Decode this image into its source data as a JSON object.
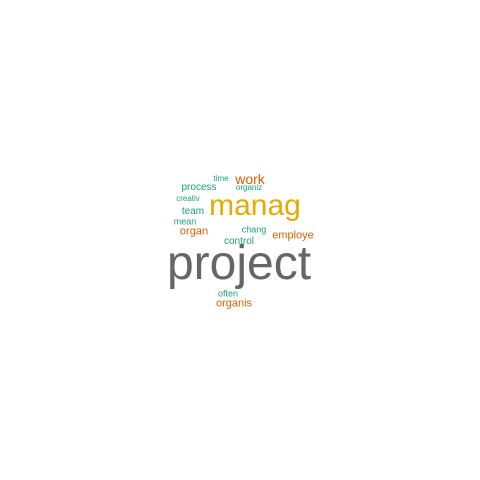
{
  "palette": {
    "gray": "#666666",
    "gold": "#e6ab02",
    "orange": "#d95f02",
    "teal": "#1b9e77"
  },
  "words": [
    {
      "id": "project",
      "text": "project",
      "color": "#666666"
    },
    {
      "id": "manag",
      "text": "manag",
      "color": "#e6ab02"
    },
    {
      "id": "work",
      "text": "work",
      "color": "#d95f02"
    },
    {
      "id": "organ",
      "text": "organ",
      "color": "#d95f02"
    },
    {
      "id": "employe",
      "text": "employe",
      "color": "#d95f02"
    },
    {
      "id": "organis",
      "text": "organis",
      "color": "#d95f02"
    },
    {
      "id": "process",
      "text": "process",
      "color": "#1b9e77"
    },
    {
      "id": "team",
      "text": "team",
      "color": "#1b9e77"
    },
    {
      "id": "control",
      "text": "control",
      "color": "#1b9e77"
    },
    {
      "id": "time",
      "text": "time",
      "color": "#1b9e77"
    },
    {
      "id": "organiz",
      "text": "organiz",
      "color": "#1b9e77"
    },
    {
      "id": "creativ",
      "text": "creativ",
      "color": "#1b9e77"
    },
    {
      "id": "mean",
      "text": "mean",
      "color": "#1b9e77"
    },
    {
      "id": "chang",
      "text": "chang",
      "color": "#1b9e77"
    },
    {
      "id": "often",
      "text": "often",
      "color": "#1b9e77"
    }
  ]
}
